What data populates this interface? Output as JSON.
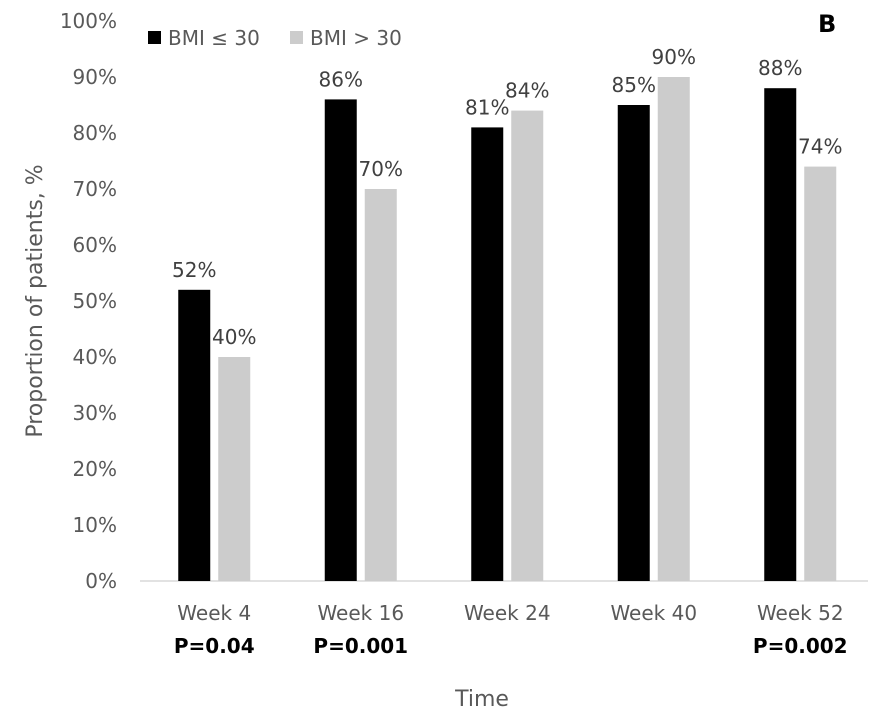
{
  "chart_data": {
    "type": "bar",
    "panel_label": "B",
    "categories": [
      "Week 4",
      "Week 16",
      "Week 24",
      "Week 40",
      "Week 52"
    ],
    "p_values": [
      "P=0.04",
      "P=0.001",
      "",
      "",
      "P=0.002"
    ],
    "series": [
      {
        "name": "BMI ≤ 30",
        "color": "#000000",
        "values": [
          52,
          86,
          81,
          85,
          88
        ],
        "labels": [
          "52%",
          "86%",
          "81%",
          "85%",
          "88%"
        ]
      },
      {
        "name": "BMI > 30",
        "color": "#cccccc",
        "values": [
          40,
          70,
          84,
          90,
          74
        ],
        "labels": [
          "40%",
          "70%",
          "84%",
          "90%",
          "74%"
        ]
      }
    ],
    "xlabel": "Time",
    "ylabel": "Proportion of patients, %",
    "ylim": [
      0,
      100
    ],
    "yticks": [
      "0%",
      "10%",
      "20%",
      "30%",
      "40%",
      "50%",
      "60%",
      "70%",
      "80%",
      "90%",
      "100%"
    ],
    "legend_position": "top-left",
    "grid": false
  }
}
